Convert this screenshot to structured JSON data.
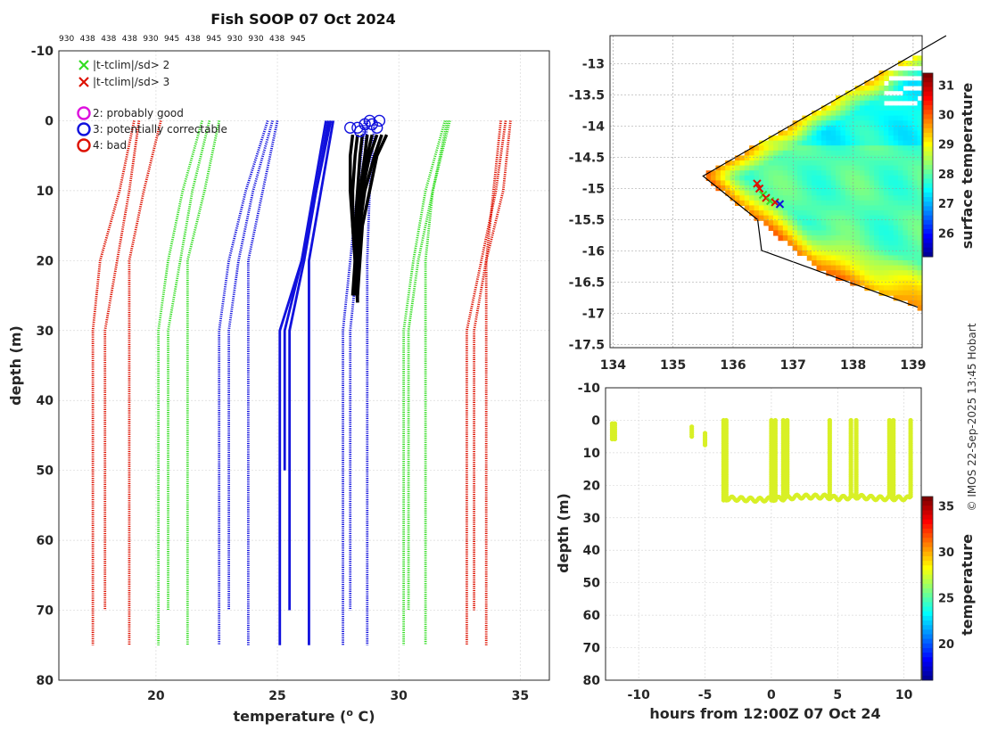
{
  "colors": {
    "green": "#33dd22",
    "red": "#dd1100",
    "blue": "#1111dd",
    "black": "#000000",
    "magenta": "#dd11dd",
    "ocean_warm": "#f2a33a",
    "ocean_cool": "#22cc22",
    "scatter_point": "#d8f026"
  },
  "footer": "© IMOS 22-Sep-2025 13:45 Hobart",
  "chart_data": [
    {
      "id": "profile",
      "type": "line",
      "title": "Fish SOOP 07 Oct 2024",
      "platform_ids": [
        "930",
        "438",
        "438",
        "438",
        "930",
        "945",
        "438",
        "945",
        "930",
        "930",
        "438",
        "945"
      ],
      "xlabel": "temperature (",
      "xlabel_sup": "o",
      "xlabel_end": " C)",
      "ylabel": "depth (m)",
      "xlim": [
        16,
        36.2
      ],
      "ylim": [
        -10,
        80
      ],
      "y_reversed": true,
      "xticks": [
        20,
        25,
        30,
        35
      ],
      "yticks": [
        -10,
        0,
        10,
        20,
        30,
        40,
        50,
        60,
        70,
        80
      ],
      "grid": true,
      "legend": [
        {
          "marker": "x",
          "color": "green",
          "label": "|t-tclim|/sd> 2"
        },
        {
          "marker": "x",
          "color": "red",
          "label": "|t-tclim|/sd> 3"
        },
        {
          "marker": "o",
          "color": "magenta",
          "label": "2: probably good"
        },
        {
          "marker": "o",
          "color": "blue",
          "label": "3: potentially correctable"
        },
        {
          "marker": "o",
          "color": "red",
          "label": "4: bad"
        }
      ],
      "climatology_series": [
        {
          "name": "climatology -3sd",
          "color": "red",
          "style": "dotted",
          "depth": [
            0,
            10,
            20,
            30,
            70
          ],
          "temp": [
            19.3,
            18.9,
            18.4,
            17.9,
            17.9
          ]
        },
        {
          "name": "climatology -3sd",
          "color": "red",
          "style": "dotted",
          "depth": [
            0,
            10,
            20,
            30,
            75
          ],
          "temp": [
            19.1,
            18.5,
            17.7,
            17.4,
            17.4
          ]
        },
        {
          "name": "climatology -3sd",
          "color": "red",
          "style": "dotted",
          "depth": [
            0,
            10,
            20,
            75
          ],
          "temp": [
            20.2,
            19.5,
            18.9,
            18.9
          ]
        },
        {
          "name": "climatology -2sd",
          "color": "green",
          "style": "dotted",
          "depth": [
            0,
            10,
            20,
            30,
            70
          ],
          "temp": [
            22.2,
            21.5,
            21.0,
            20.5,
            20.5
          ]
        },
        {
          "name": "climatology -2sd",
          "color": "green",
          "style": "dotted",
          "depth": [
            0,
            10,
            20,
            30,
            75
          ],
          "temp": [
            21.9,
            21.1,
            20.5,
            20.1,
            20.1
          ]
        },
        {
          "name": "climatology -2sd",
          "color": "green",
          "style": "dotted",
          "depth": [
            0,
            10,
            20,
            75
          ],
          "temp": [
            22.6,
            22.0,
            21.3,
            21.3
          ]
        },
        {
          "name": "climatology mean",
          "color": "blue",
          "style": "dotted",
          "depth": [
            0,
            10,
            20,
            30,
            70
          ],
          "temp": [
            24.8,
            24.0,
            23.4,
            23.0,
            23.0
          ]
        },
        {
          "name": "climatology mean",
          "color": "blue",
          "style": "dotted",
          "depth": [
            0,
            10,
            20,
            30,
            75
          ],
          "temp": [
            24.6,
            23.7,
            23.0,
            22.6,
            22.6
          ]
        },
        {
          "name": "climatology mean",
          "color": "blue",
          "style": "dotted",
          "depth": [
            0,
            10,
            20,
            75
          ],
          "temp": [
            25.0,
            24.4,
            23.8,
            23.8
          ]
        },
        {
          "name": "climatology mean",
          "color": "blue",
          "style": "dotted",
          "depth": [
            0,
            10,
            20,
            30,
            70
          ],
          "temp": [
            28.7,
            28.5,
            28.3,
            28.0,
            28.0
          ]
        },
        {
          "name": "climatology mean",
          "color": "blue",
          "style": "dotted",
          "depth": [
            0,
            10,
            20,
            30,
            75
          ],
          "temp": [
            28.6,
            28.3,
            28.0,
            27.7,
            27.7
          ]
        },
        {
          "name": "climatology mean",
          "color": "blue",
          "style": "dotted",
          "depth": [
            0,
            10,
            20,
            75
          ],
          "temp": [
            29.0,
            28.8,
            28.7,
            28.7
          ]
        },
        {
          "name": "climatology +2sd",
          "color": "green",
          "style": "dotted",
          "depth": [
            0,
            10,
            20,
            30,
            70
          ],
          "temp": [
            32.1,
            31.4,
            30.8,
            30.4,
            30.4
          ]
        },
        {
          "name": "climatology +2sd",
          "color": "green",
          "style": "dotted",
          "depth": [
            0,
            10,
            20,
            30,
            75
          ],
          "temp": [
            31.9,
            31.1,
            30.6,
            30.2,
            30.2
          ]
        },
        {
          "name": "climatology +2sd",
          "color": "green",
          "style": "dotted",
          "depth": [
            0,
            10,
            20,
            75
          ],
          "temp": [
            32.0,
            31.4,
            31.1,
            31.1
          ]
        },
        {
          "name": "climatology +3sd",
          "color": "red",
          "style": "dotted",
          "depth": [
            0,
            10,
            20,
            30,
            70
          ],
          "temp": [
            34.6,
            34.3,
            33.6,
            33.1,
            33.1
          ]
        },
        {
          "name": "climatology +3sd",
          "color": "red",
          "style": "dotted",
          "depth": [
            0,
            10,
            20,
            30,
            75
          ],
          "temp": [
            34.4,
            34.0,
            33.4,
            32.8,
            32.8
          ]
        },
        {
          "name": "climatology +3sd",
          "color": "red",
          "style": "dotted",
          "depth": [
            0,
            10,
            20,
            75
          ],
          "temp": [
            34.2,
            33.9,
            33.6,
            33.6
          ]
        }
      ],
      "reference_series": [
        {
          "name": "reference profile",
          "color": "blue",
          "style": "solid",
          "depth": [
            0,
            20,
            30,
            50
          ],
          "temp": [
            27.0,
            26.0,
            25.3,
            25.3
          ]
        },
        {
          "name": "reference profile",
          "color": "blue",
          "style": "solid",
          "depth": [
            0,
            20,
            30,
            70
          ],
          "temp": [
            27.1,
            26.1,
            25.5,
            25.5
          ]
        },
        {
          "name": "reference profile",
          "color": "blue",
          "style": "solid",
          "depth": [
            0,
            20,
            75
          ],
          "temp": [
            27.3,
            26.3,
            26.3
          ]
        },
        {
          "name": "reference profile",
          "color": "blue",
          "style": "solid",
          "depth": [
            0,
            20,
            30,
            75
          ],
          "temp": [
            27.2,
            26.0,
            25.1,
            25.1
          ]
        }
      ],
      "observed_profiles": [
        {
          "name": "profile 1",
          "color": "black",
          "depth": [
            2,
            5,
            10,
            15,
            20,
            25
          ],
          "temp": [
            28.1,
            28.0,
            28.0,
            28.1,
            28.2,
            28.2
          ]
        },
        {
          "name": "profile 2",
          "color": "black",
          "depth": [
            2,
            5,
            10,
            15,
            20,
            26
          ],
          "temp": [
            28.9,
            28.7,
            28.5,
            28.3,
            28.3,
            28.3
          ]
        },
        {
          "name": "profile 3",
          "color": "black",
          "depth": [
            2,
            5,
            10,
            15,
            20,
            24
          ],
          "temp": [
            29.3,
            29.0,
            28.6,
            28.4,
            28.3,
            28.3
          ]
        },
        {
          "name": "profile 4",
          "color": "black",
          "depth": [
            2,
            5,
            10,
            15,
            20,
            25
          ],
          "temp": [
            28.5,
            28.4,
            28.3,
            28.2,
            28.2,
            28.1
          ]
        },
        {
          "name": "profile 5",
          "color": "black",
          "depth": [
            2,
            5,
            10,
            15,
            20,
            24
          ],
          "temp": [
            29.1,
            28.8,
            28.5,
            28.4,
            28.3,
            28.3
          ]
        },
        {
          "name": "profile 6",
          "color": "black",
          "depth": [
            2,
            5,
            10,
            15,
            20,
            25
          ],
          "temp": [
            28.3,
            28.2,
            28.1,
            28.1,
            28.2,
            28.2
          ]
        },
        {
          "name": "profile 7",
          "color": "black",
          "depth": [
            2,
            5,
            10,
            15,
            20,
            26
          ],
          "temp": [
            28.7,
            28.6,
            28.4,
            28.3,
            28.2,
            28.3
          ]
        },
        {
          "name": "profile 8",
          "color": "black",
          "depth": [
            2,
            5,
            10,
            15,
            20,
            25
          ],
          "temp": [
            29.5,
            29.1,
            28.8,
            28.5,
            28.4,
            28.3
          ]
        }
      ],
      "qc_flags": [
        {
          "flag": 3,
          "depth": 1,
          "temp": 28.0
        },
        {
          "flag": 3,
          "depth": 1,
          "temp": 28.3
        },
        {
          "flag": 3,
          "depth": 0.5,
          "temp": 28.6
        },
        {
          "flag": 3,
          "depth": 0,
          "temp": 28.8
        },
        {
          "flag": 3,
          "depth": 1,
          "temp": 29.1
        },
        {
          "flag": 3,
          "depth": 0.5,
          "temp": 28.9
        },
        {
          "flag": 3,
          "depth": 0,
          "temp": 29.2
        },
        {
          "flag": 3,
          "depth": 1.5,
          "temp": 28.4
        }
      ]
    },
    {
      "id": "map",
      "type": "heatmap",
      "title": "",
      "xlabel": "",
      "ylabel": "",
      "xlim": [
        133.95,
        139.15
      ],
      "ylim": [
        -17.55,
        -12.55
      ],
      "xticks": [
        134,
        135,
        136,
        137,
        138,
        139
      ],
      "yticks": [
        -13,
        -13.5,
        -14,
        -14.5,
        -15,
        -15.5,
        -16,
        -16.5,
        -17,
        -17.5
      ],
      "grid": true,
      "colorbar": {
        "label": "surface temperature",
        "range": [
          25.2,
          31.4
        ],
        "ticks": [
          26,
          27,
          28,
          29,
          30,
          31
        ]
      },
      "field_summary": "sea surface temperature ~27.5-29 C offshore, warmer (29-30.5 C) near coast",
      "track_points": [
        {
          "lon": 136.4,
          "lat": -14.92,
          "marker": "x",
          "color": "red"
        },
        {
          "lon": 136.44,
          "lat": -15.0,
          "marker": "x",
          "color": "red"
        },
        {
          "lon": 136.5,
          "lat": -15.1,
          "marker": "x",
          "color": "green"
        },
        {
          "lon": 136.55,
          "lat": -15.15,
          "marker": "x",
          "color": "red"
        },
        {
          "lon": 136.62,
          "lat": -15.2,
          "marker": "x",
          "color": "green"
        },
        {
          "lon": 136.7,
          "lat": -15.22,
          "marker": "x",
          "color": "red"
        },
        {
          "lon": 136.78,
          "lat": -15.25,
          "marker": "x",
          "color": "blue"
        }
      ]
    },
    {
      "id": "timeseries",
      "type": "scatter",
      "title": "",
      "xlabel": "hours from 12:00Z 07 Oct 24",
      "ylabel": "depth (m)",
      "xlim": [
        -12.5,
        11.3
      ],
      "ylim": [
        -10,
        80
      ],
      "y_reversed": true,
      "xticks": [
        -10,
        -5,
        0,
        5,
        10
      ],
      "yticks": [
        -10,
        0,
        10,
        20,
        30,
        40,
        50,
        60,
        70,
        80
      ],
      "grid": true,
      "colorbar": {
        "label": "temperature",
        "range": [
          16,
          36
        ],
        "ticks": [
          20,
          25,
          30,
          35
        ]
      },
      "point_temperature": 28.3,
      "casts": [
        {
          "hour": -12.0,
          "top": 1,
          "bottom": 6
        },
        {
          "hour": -11.8,
          "top": 1,
          "bottom": 6
        },
        {
          "hour": -6.0,
          "top": 2,
          "bottom": 5
        },
        {
          "hour": -5.0,
          "top": 4,
          "bottom": 8
        },
        {
          "hour": -3.6,
          "top": 0,
          "bottom": 25
        },
        {
          "hour": -3.4,
          "top": 0,
          "bottom": 25
        },
        {
          "hour": 0.0,
          "top": 0,
          "bottom": 25
        },
        {
          "hour": 0.3,
          "top": 0,
          "bottom": 25
        },
        {
          "hour": 0.9,
          "top": 0,
          "bottom": 25
        },
        {
          "hour": 1.2,
          "top": 0,
          "bottom": 24
        },
        {
          "hour": 4.4,
          "top": 0,
          "bottom": 24
        },
        {
          "hour": 6.0,
          "top": 0,
          "bottom": 24
        },
        {
          "hour": 6.4,
          "top": 0,
          "bottom": 23
        },
        {
          "hour": 8.9,
          "top": 0,
          "bottom": 24
        },
        {
          "hour": 9.2,
          "top": 0,
          "bottom": 24
        },
        {
          "hour": 10.5,
          "top": 0,
          "bottom": 24
        }
      ],
      "bottom_track": {
        "hours": [
          -3.5,
          -1,
          1,
          2,
          4,
          5,
          6.5,
          8,
          10.5
        ],
        "depth": [
          24,
          24.5,
          24,
          23.5,
          23.5,
          24,
          23.5,
          24,
          24
        ]
      }
    }
  ]
}
